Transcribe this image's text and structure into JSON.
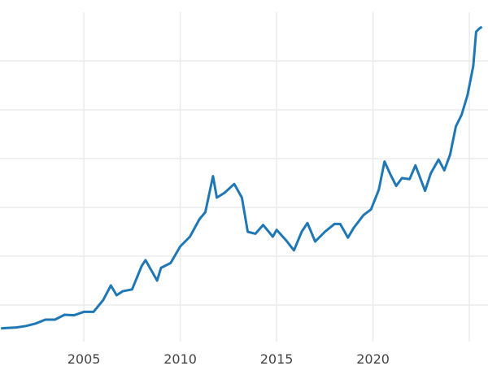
{
  "chart_data": {
    "type": "line",
    "title": "",
    "xlabel": "",
    "ylabel": "",
    "xlim": [
      2000.65,
      2025.67
    ],
    "ylim": [
      125,
      3625
    ],
    "x_ticks": [
      2005,
      2010,
      2015,
      2020,
      2025
    ],
    "x_tick_labels": [
      "2005",
      "2010",
      "2015",
      "2020",
      ""
    ],
    "y_gridlines": [
      500,
      1000,
      1500,
      2000,
      2500,
      3000
    ],
    "grid": true,
    "line_color": "#1f77b4",
    "series": [
      {
        "x": [
          2000.7,
          2001.0,
          2001.5,
          2002.0,
          2002.5,
          2003.0,
          2003.5,
          2004.0,
          2004.5,
          2005.0,
          2005.5,
          2006.0,
          2006.4,
          2006.7,
          2007.0,
          2007.5,
          2008.0,
          2008.2,
          2008.8,
          2009.0,
          2009.5,
          2010.0,
          2010.5,
          2011.0,
          2011.3,
          2011.7,
          2011.9,
          2012.3,
          2012.8,
          2013.2,
          2013.5,
          2013.9,
          2014.3,
          2014.8,
          2015.0,
          2015.5,
          2015.9,
          2016.3,
          2016.6,
          2017.0,
          2017.5,
          2018.0,
          2018.3,
          2018.7,
          2019.0,
          2019.5,
          2019.9,
          2020.3,
          2020.6,
          2020.9,
          2021.2,
          2021.5,
          2021.9,
          2022.2,
          2022.7,
          2023.0,
          2023.4,
          2023.7,
          2024.0,
          2024.3,
          2024.6,
          2024.9,
          2025.2,
          2025.35,
          2025.5,
          2025.65
        ],
        "y": [
          260,
          265,
          270,
          285,
          310,
          350,
          350,
          400,
          395,
          430,
          430,
          550,
          700,
          600,
          640,
          660,
          900,
          960,
          750,
          880,
          930,
          1100,
          1200,
          1380,
          1450,
          1820,
          1600,
          1650,
          1740,
          1600,
          1250,
          1230,
          1320,
          1200,
          1270,
          1160,
          1060,
          1250,
          1340,
          1150,
          1250,
          1330,
          1330,
          1190,
          1290,
          1420,
          1480,
          1680,
          1970,
          1840,
          1720,
          1800,
          1790,
          1930,
          1670,
          1850,
          1990,
          1880,
          2040,
          2330,
          2450,
          2650,
          2950,
          3300,
          3330,
          3350
        ]
      }
    ]
  }
}
